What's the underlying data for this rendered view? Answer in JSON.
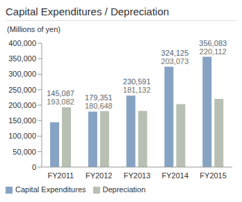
{
  "chart_data": {
    "type": "bar",
    "title": "Capital Expenditures / Depreciation",
    "y_label": "(Millions of yen)",
    "categories": [
      "FY2011",
      "FY2012",
      "FY2013",
      "FY2014",
      "FY2015"
    ],
    "series": [
      {
        "name": "Capital Expenditures",
        "color": "#86a3c3",
        "values": [
          145087,
          179351,
          230591,
          324125,
          356083
        ],
        "value_labels": [
          "145,087",
          "179,351",
          "230,591",
          "324,125",
          "356,083"
        ]
      },
      {
        "name": "Depreciation",
        "color": "#b8c0b3",
        "values": [
          193082,
          180648,
          181132,
          203073,
          220112
        ],
        "value_labels": [
          "193,082",
          "180,648",
          "181,132",
          "203,073",
          "220,112"
        ]
      }
    ],
    "ylim": [
      0,
      400000
    ],
    "yticks": [
      0,
      {
        "value": 50000,
        "label": "50,000"
      },
      {
        "value": 100000,
        "label": "100,000"
      },
      {
        "value": 150000,
        "label": "150,000"
      },
      {
        "value": 200000,
        "label": "200,000"
      },
      {
        "value": 250000,
        "label": "250,000"
      },
      {
        "value": 300000,
        "label": "300,000"
      },
      {
        "value": 350000,
        "label": "350,000"
      },
      {
        "value": 400000,
        "label": "400,000"
      }
    ],
    "grid": false,
    "legend": "bottom",
    "data_labels": true
  }
}
